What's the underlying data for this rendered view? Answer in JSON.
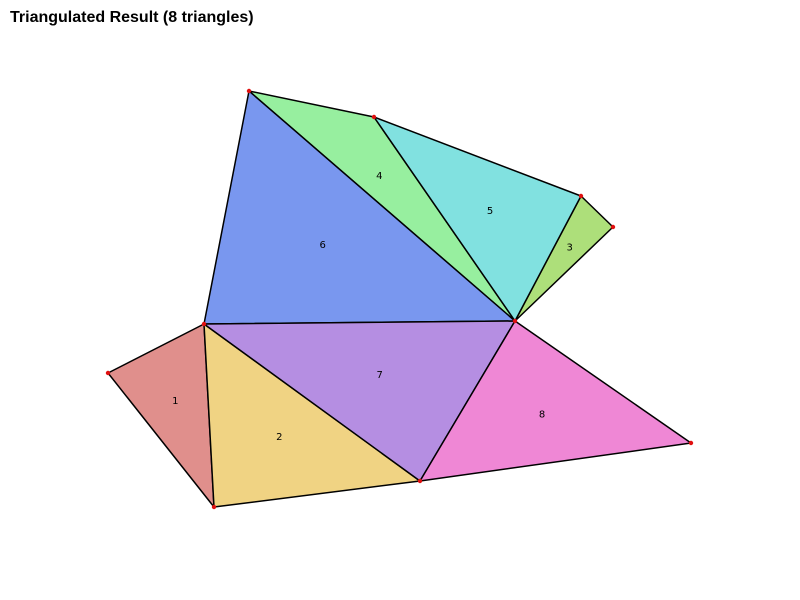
{
  "title": "Triangulated Result (8 triangles)",
  "vertex_color": "#e01010",
  "edge_color": "#000000",
  "triangles": [
    {
      "label": "1",
      "color": "#e08f8c"
    },
    {
      "label": "2",
      "color": "#f0d383"
    },
    {
      "label": "3",
      "color": "#addf7a"
    },
    {
      "label": "4",
      "color": "#97ef9f"
    },
    {
      "label": "5",
      "color": "#81e1e0"
    },
    {
      "label": "6",
      "color": "#7997ef"
    },
    {
      "label": "7",
      "color": "#b58ee2"
    },
    {
      "label": "8",
      "color": "#ef87d5"
    }
  ]
}
